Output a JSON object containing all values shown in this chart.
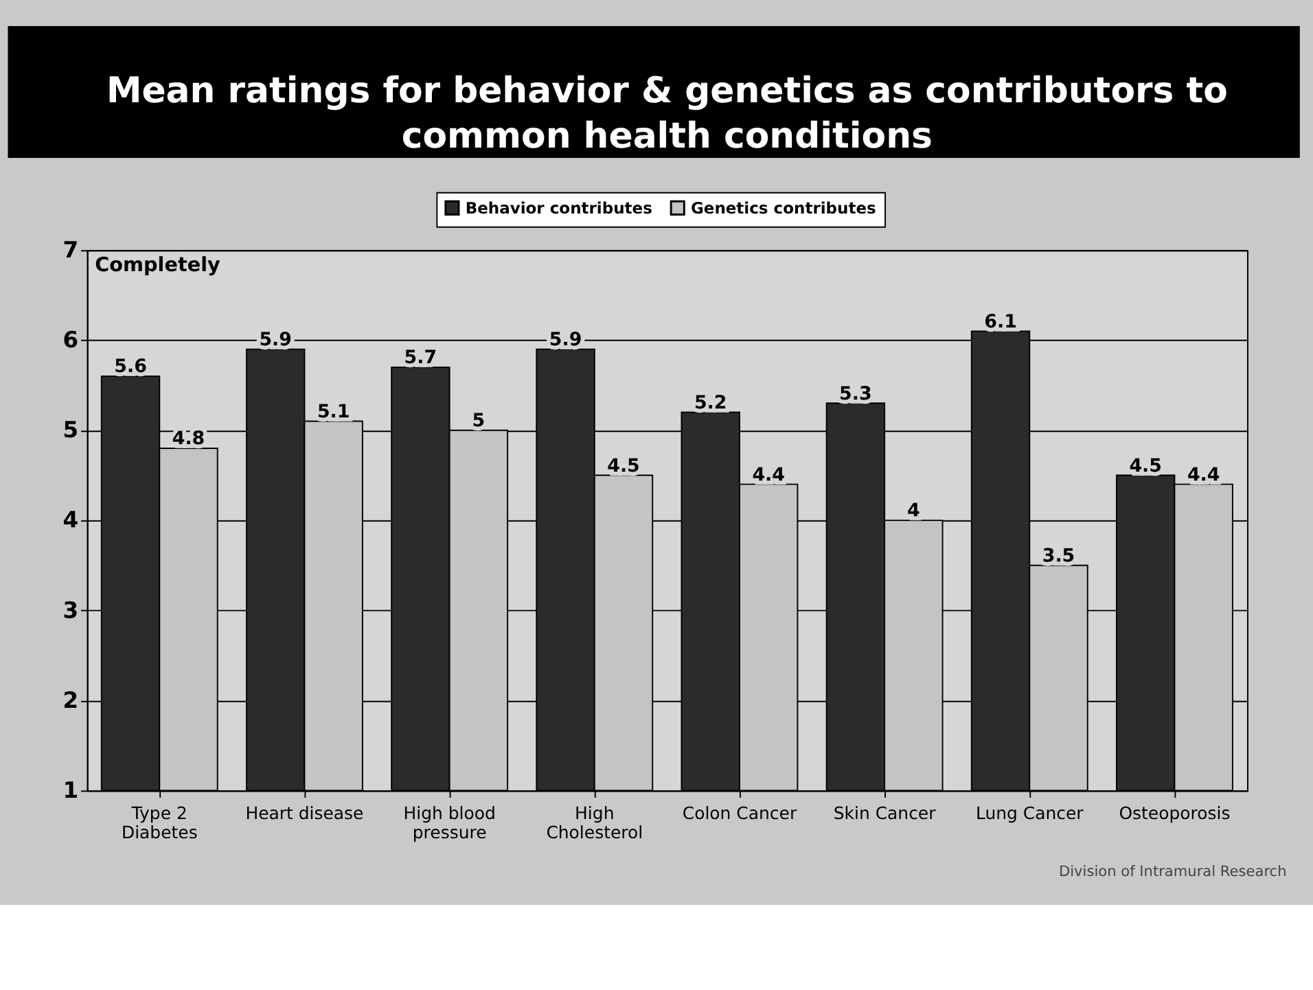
{
  "chart_data": {
    "type": "bar",
    "title": "Mean ratings for behavior & genetics as contributors to common health conditions",
    "categories": [
      "Type 2 Diabetes",
      "Heart disease",
      "High blood pressure",
      "High Cholesterol",
      "Colon Cancer",
      "Skin Cancer",
      "Lung Cancer",
      "Osteoporosis"
    ],
    "series": [
      {
        "name": "Behavior contributes",
        "color": "#2b2b2b",
        "values": [
          5.6,
          5.9,
          5.7,
          5.9,
          5.2,
          5.3,
          6.1,
          4.5
        ]
      },
      {
        "name": "Genetics contributes",
        "color": "#c4c4c4",
        "values": [
          4.8,
          5.1,
          5,
          4.5,
          4.4,
          4,
          3.5,
          4.4
        ]
      }
    ],
    "ylim": [
      1,
      7
    ],
    "yticks": [
      1,
      2,
      3,
      4,
      5,
      6,
      7
    ],
    "grid": "y",
    "legend": "top",
    "data_labels": true,
    "annotations": [
      "Completely",
      "Division of Intramural Research"
    ]
  }
}
